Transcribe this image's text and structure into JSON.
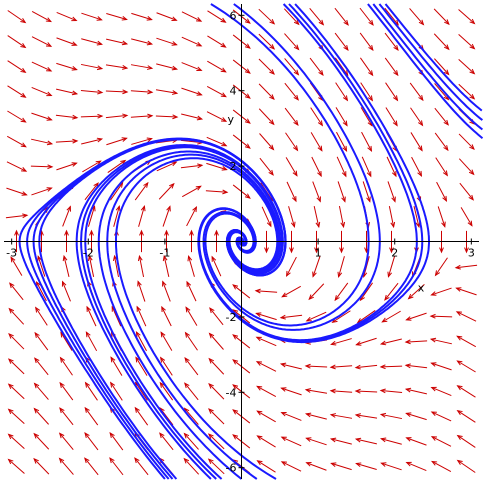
{
  "chart_data": {
    "type": "direction-field-phase-portrait",
    "xlabel": "x",
    "ylabel": "y",
    "xlim": [
      -3.1,
      3.1
    ],
    "ylim": [
      -6.3,
      6.3
    ],
    "x_ticks": [
      {
        "value": -3,
        "label": "-3"
      },
      {
        "value": -2,
        "label": "-2"
      },
      {
        "value": -1,
        "label": "-1"
      },
      {
        "value": 1,
        "label": "1"
      },
      {
        "value": 2,
        "label": "2"
      },
      {
        "value": 3,
        "label": "3"
      }
    ],
    "y_ticks": [
      {
        "value": 6,
        "label": "6"
      },
      {
        "value": 4,
        "label": "4"
      },
      {
        "value": 2,
        "label": "2"
      },
      {
        "value": -2,
        "label": "-2"
      },
      {
        "value": -4,
        "label": "-4"
      },
      {
        "value": -6,
        "label": "-6"
      }
    ],
    "system": {
      "dx_dt": "y",
      "dy_dt": "-6*sin(x) - 1.6*y"
    },
    "arrow_grid": {
      "nx": 19,
      "ny": 19
    },
    "trajectory_seeds": [
      [
        -1.0,
        -6.3
      ],
      [
        -0.95,
        -6.3
      ],
      [
        -0.9,
        -6.3
      ],
      [
        -0.85,
        -6.3
      ],
      [
        -0.4,
        -6.3
      ],
      [
        -0.33,
        -6.3
      ],
      [
        -0.26,
        -6.3
      ],
      [
        0.0,
        -6.3
      ],
      [
        0.2,
        -6.3
      ],
      [
        0.45,
        -6.3
      ],
      [
        0.55,
        6.3
      ],
      [
        0.62,
        6.3
      ],
      [
        0.7,
        6.3
      ],
      [
        1.65,
        6.3
      ],
      [
        1.72,
        6.3
      ],
      [
        1.8,
        6.3
      ],
      [
        1.88,
        6.3
      ],
      [
        -0.4,
        6.3
      ],
      [
        -0.1,
        6.3
      ]
    ],
    "colors": {
      "field": "#cc0000",
      "trajectory": "#1a1aff",
      "axes": "#000000"
    }
  }
}
